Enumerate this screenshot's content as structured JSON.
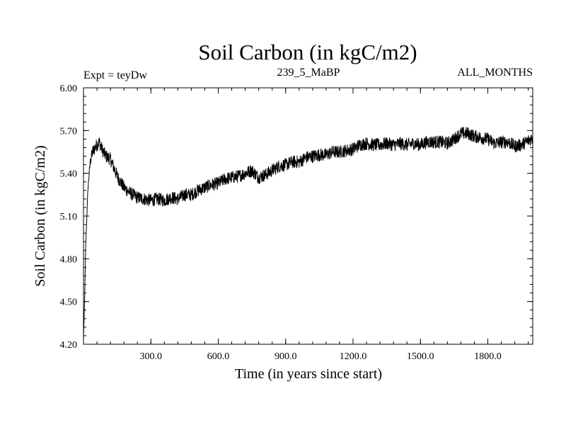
{
  "chart_data": {
    "type": "line",
    "title": "Soil Carbon (in kgC/m2)",
    "subtitle_left": "Expt = teyDw",
    "subtitle_center": "239_5_MaBP",
    "subtitle_right": "ALL_MONTHS",
    "xlabel": "Time (in years since start)",
    "ylabel": "Soil Carbon (in kgC/m2)",
    "xlim": [
      0,
      2000
    ],
    "ylim": [
      4.2,
      6.0
    ],
    "x_ticks": [
      300,
      600,
      900,
      1200,
      1500,
      1800
    ],
    "x_tick_labels": [
      "300.0",
      "600.0",
      "900.0",
      "1200.0",
      "1500.0",
      "1800.0"
    ],
    "y_ticks": [
      4.2,
      4.5,
      4.8,
      5.1,
      5.4,
      5.7,
      6.0
    ],
    "y_tick_labels": [
      "4.20",
      "4.50",
      "4.80",
      "5.10",
      "5.40",
      "5.70",
      "6.00"
    ],
    "x_minor_step": 60,
    "y_minor_step": 0.06,
    "line_color": "#000000",
    "series": [
      {
        "name": "Soil Carbon",
        "noise_amplitude": 0.045,
        "x": [
          0,
          5,
          10,
          20,
          30,
          40,
          55,
          70,
          85,
          100,
          120,
          150,
          180,
          210,
          240,
          270,
          300,
          330,
          360,
          390,
          420,
          450,
          480,
          510,
          540,
          570,
          600,
          630,
          660,
          690,
          720,
          750,
          780,
          810,
          840,
          870,
          900,
          930,
          960,
          990,
          1020,
          1050,
          1080,
          1110,
          1140,
          1170,
          1200,
          1230,
          1260,
          1290,
          1320,
          1350,
          1380,
          1410,
          1440,
          1470,
          1500,
          1530,
          1560,
          1590,
          1620,
          1650,
          1680,
          1710,
          1740,
          1770,
          1800,
          1830,
          1860,
          1890,
          1920,
          1950,
          1980,
          2000
        ],
        "values": [
          4.25,
          4.5,
          4.9,
          5.3,
          5.48,
          5.55,
          5.59,
          5.62,
          5.56,
          5.52,
          5.5,
          5.38,
          5.3,
          5.26,
          5.23,
          5.22,
          5.21,
          5.22,
          5.21,
          5.23,
          5.22,
          5.25,
          5.25,
          5.28,
          5.3,
          5.32,
          5.33,
          5.36,
          5.37,
          5.38,
          5.4,
          5.42,
          5.37,
          5.39,
          5.42,
          5.45,
          5.46,
          5.48,
          5.48,
          5.51,
          5.52,
          5.53,
          5.53,
          5.55,
          5.55,
          5.56,
          5.57,
          5.6,
          5.61,
          5.6,
          5.6,
          5.61,
          5.6,
          5.61,
          5.6,
          5.61,
          5.6,
          5.62,
          5.62,
          5.62,
          5.61,
          5.64,
          5.68,
          5.68,
          5.66,
          5.65,
          5.64,
          5.61,
          5.62,
          5.62,
          5.59,
          5.6,
          5.63,
          5.65
        ]
      }
    ]
  }
}
